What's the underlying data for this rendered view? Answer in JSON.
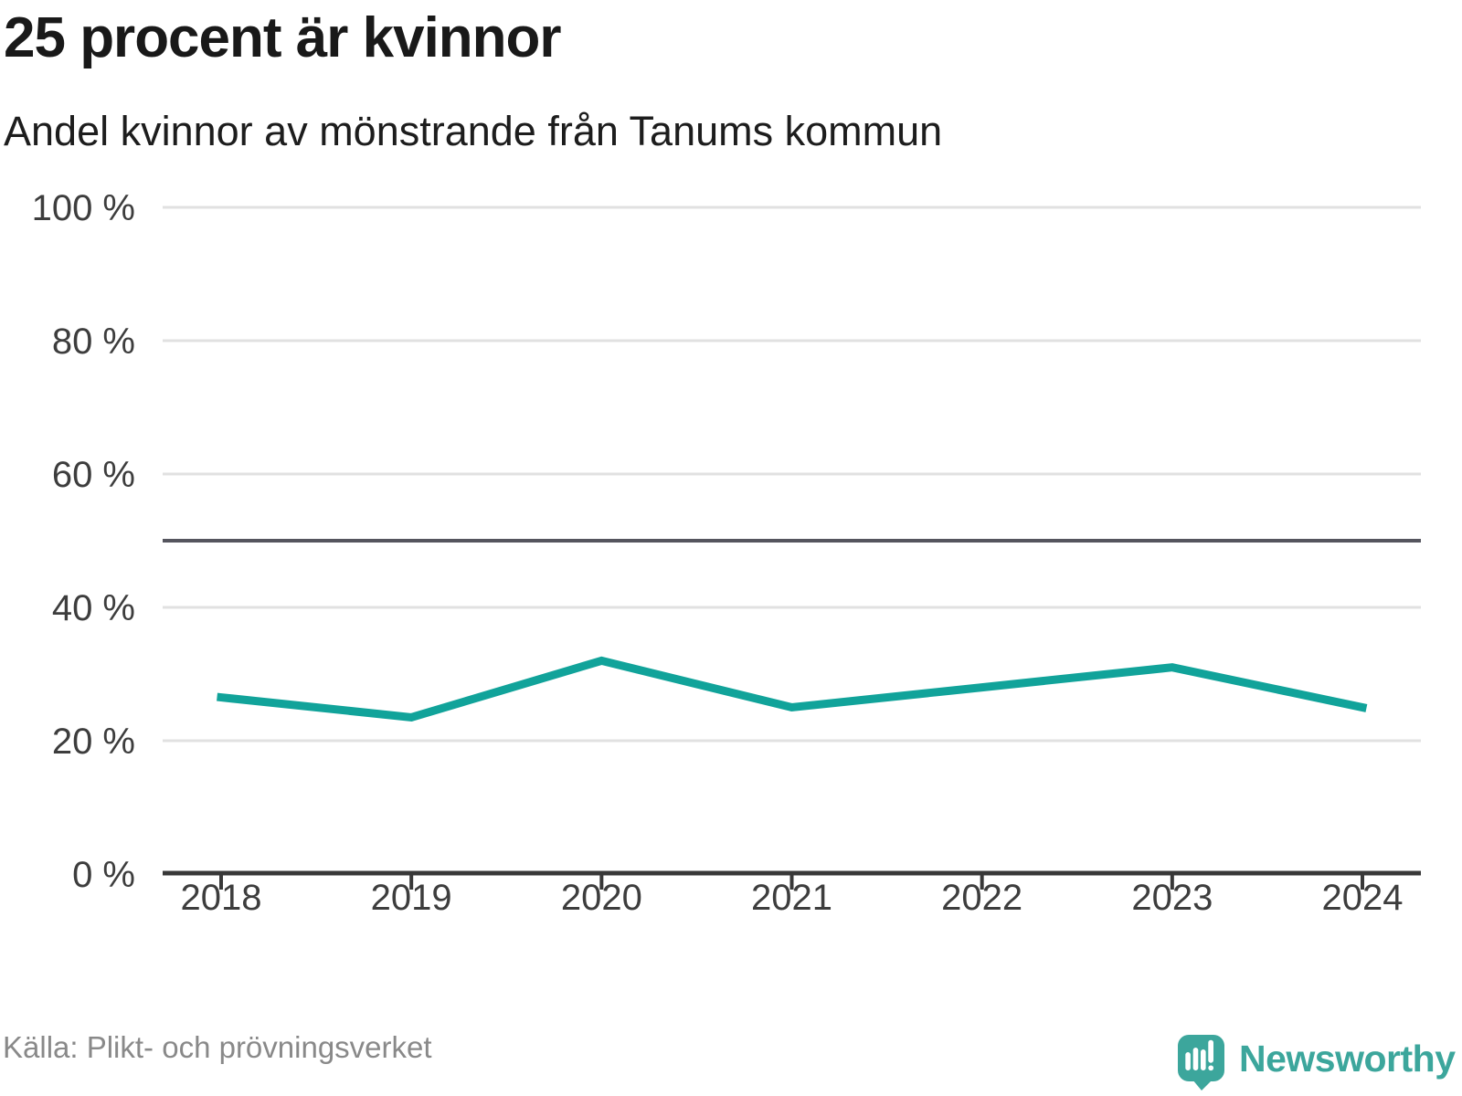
{
  "header": {
    "title": "25 procent är kvinnor",
    "subtitle": "Andel kvinnor av mönstrande från Tanums kommun"
  },
  "footer": {
    "source": "Källa: Plikt- och prövningsverket",
    "brand": "Newsworthy"
  },
  "colors": {
    "line": "#11a39a",
    "grid": "#e1e1e1",
    "reference_line": "#55555e",
    "axis": "#383838",
    "tick_label": "#3d3d3d",
    "title": "#191919",
    "source_text": "#898989",
    "logo": "#3ca69c"
  },
  "chart_data": {
    "type": "line",
    "categories": [
      "2018",
      "2019",
      "2020",
      "2021",
      "2022",
      "2023",
      "2024"
    ],
    "values": [
      26.5,
      23.5,
      32,
      25,
      28,
      31,
      25
    ],
    "title": "25 procent är kvinnor",
    "subtitle": "Andel kvinnor av mönstrande från Tanums kommun",
    "xlabel": "",
    "ylabel": "",
    "ylim": [
      0,
      100
    ],
    "yticks": [
      0,
      20,
      40,
      60,
      80,
      100
    ],
    "ytick_suffix": " %",
    "reference_line_y": 50,
    "grid": "horizontal",
    "legend": "none"
  }
}
